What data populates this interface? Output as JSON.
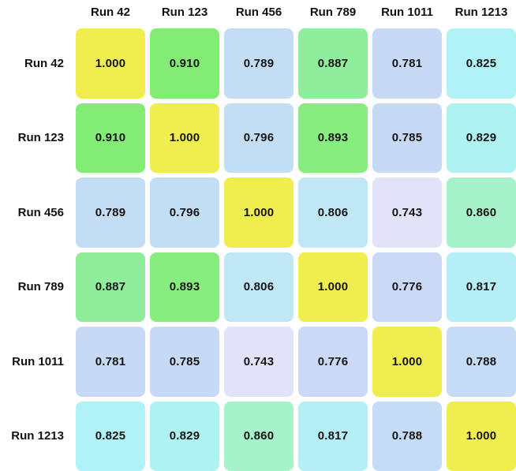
{
  "chart_data": {
    "type": "heatmap",
    "title": "",
    "x_labels": [
      "Run 42",
      "Run 123",
      "Run 456",
      "Run 789",
      "Run 1011",
      "Run 1213"
    ],
    "y_labels": [
      "Run 42",
      "Run 123",
      "Run 456",
      "Run 789",
      "Run 1011",
      "Run 1213"
    ],
    "cell_text": [
      [
        "1.000",
        "0.910",
        "0.789",
        "0.887",
        "0.781",
        "0.825"
      ],
      [
        "0.910",
        "1.000",
        "0.796",
        "0.893",
        "0.785",
        "0.829"
      ],
      [
        "0.789",
        "0.796",
        "1.000",
        "0.806",
        "0.743",
        "0.860"
      ],
      [
        "0.887",
        "0.893",
        "0.806",
        "1.000",
        "0.776",
        "0.817"
      ],
      [
        "0.781",
        "0.785",
        "0.743",
        "0.776",
        "1.000",
        "0.788"
      ],
      [
        "0.825",
        "0.829",
        "0.860",
        "0.817",
        "0.788",
        "1.000"
      ]
    ],
    "values": [
      [
        1.0,
        0.91,
        0.789,
        0.887,
        0.781,
        0.825
      ],
      [
        0.91,
        1.0,
        0.796,
        0.893,
        0.785,
        0.829
      ],
      [
        0.789,
        0.796,
        1.0,
        0.806,
        0.743,
        0.86
      ],
      [
        0.887,
        0.893,
        0.806,
        1.0,
        0.776,
        0.817
      ],
      [
        0.781,
        0.785,
        0.743,
        0.776,
        1.0,
        0.788
      ],
      [
        0.825,
        0.829,
        0.86,
        0.817,
        0.788,
        1.0
      ]
    ],
    "value_range": [
      0.743,
      1.0
    ],
    "legend": "none",
    "grid": "off",
    "value_colors": {
      "1.000": "#f0ee4e",
      "0.910": "#82ec74",
      "0.893": "#87ed7e",
      "0.887": "#8fee9b",
      "0.860": "#a5f2cb",
      "0.829": "#aef2f2",
      "0.825": "#b1f2f7",
      "0.817": "#b5eef5",
      "0.806": "#bfe7f4",
      "0.796": "#c2def5",
      "0.789": "#c3ddf5",
      "0.788": "#c4dcf5",
      "0.785": "#c6daf5",
      "0.781": "#c8d9f5",
      "0.776": "#cbd8f6",
      "0.743": "#e2e3f8"
    },
    "text_color": "#151515",
    "background_color": "#ffffff"
  }
}
